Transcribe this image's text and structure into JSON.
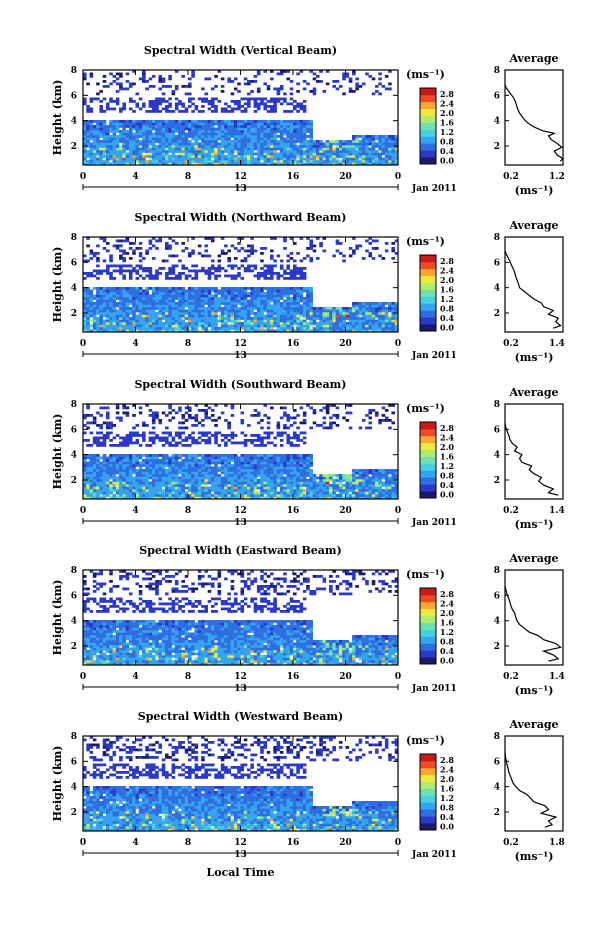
{
  "figure": {
    "bottom_xlabel": "Local Time",
    "colors": [
      "#ffffff",
      "#1b1b6b",
      "#2b39c7",
      "#2f6ee0",
      "#35a4f0",
      "#48d0e0",
      "#70e0b0",
      "#b0ec70",
      "#f0e840",
      "#f6a830",
      "#ee4a25",
      "#c81a1a"
    ]
  },
  "chart_data": [
    {
      "type": "heatmap",
      "title": "Spectral Width (Vertical Beam)",
      "ylabel": "Height (km)",
      "x_ticks": [
        "0",
        "4",
        "8",
        "12",
        "16",
        "20",
        "0"
      ],
      "x_sublabel": "13",
      "date_label": "Jan 2011",
      "y_ticks": [
        "2",
        "4",
        "6",
        "8"
      ],
      "xlim": [
        0,
        24
      ],
      "ylim": [
        0.5,
        8
      ],
      "colorbar": {
        "unit": "(ms⁻¹)",
        "ticks": [
          "0.0",
          "0.4",
          "0.8",
          "1.2",
          "1.6",
          "2.0",
          "2.4",
          "2.8"
        ]
      },
      "profile": {
        "title": "Average",
        "x_ticks": [
          "0.2",
          "1.2"
        ],
        "xlim": [
          0.2,
          1.2
        ],
        "y_ticks": [
          "2",
          "4",
          "6",
          "8"
        ],
        "xlabel": "(ms⁻¹)",
        "points": [
          [
            1.15,
            0.8
          ],
          [
            1.2,
            1.0
          ],
          [
            1.1,
            1.3
          ],
          [
            1.05,
            1.6
          ],
          [
            1.18,
            1.9
          ],
          [
            1.1,
            2.2
          ],
          [
            1.0,
            2.5
          ],
          [
            0.95,
            2.8
          ],
          [
            1.05,
            3.0
          ],
          [
            0.85,
            3.2
          ],
          [
            0.7,
            3.5
          ],
          [
            0.6,
            3.8
          ],
          [
            0.55,
            4.0
          ],
          [
            0.5,
            4.3
          ],
          [
            0.45,
            4.6
          ],
          [
            0.42,
            4.9
          ],
          [
            0.4,
            5.2
          ],
          [
            0.38,
            5.5
          ],
          [
            0.35,
            5.8
          ],
          [
            0.3,
            6.1
          ],
          [
            0.25,
            6.4
          ],
          [
            0.22,
            6.6
          ],
          [
            0.2,
            6.8
          ]
        ]
      }
    },
    {
      "type": "heatmap",
      "title": "Spectral Width (Northward Beam)",
      "ylabel": "Height (km)",
      "x_ticks": [
        "0",
        "4",
        "8",
        "12",
        "16",
        "20",
        "0"
      ],
      "x_sublabel": "13",
      "date_label": "Jan 2011",
      "y_ticks": [
        "2",
        "4",
        "6",
        "8"
      ],
      "xlim": [
        0,
        24
      ],
      "ylim": [
        0.5,
        8
      ],
      "colorbar": {
        "unit": "(ms⁻¹)",
        "ticks": [
          "0.0",
          "0.4",
          "0.8",
          "1.2",
          "1.6",
          "2.0",
          "2.4",
          "2.8"
        ]
      },
      "profile": {
        "title": "Average",
        "x_ticks": [
          "0.2",
          "1.4"
        ],
        "xlim": [
          0.2,
          1.4
        ],
        "y_ticks": [
          "2",
          "4",
          "6",
          "8"
        ],
        "xlabel": "(ms⁻¹)",
        "points": [
          [
            1.2,
            0.8
          ],
          [
            1.35,
            1.0
          ],
          [
            1.25,
            1.3
          ],
          [
            1.3,
            1.6
          ],
          [
            1.1,
            1.9
          ],
          [
            1.2,
            2.2
          ],
          [
            1.0,
            2.5
          ],
          [
            0.95,
            2.8
          ],
          [
            0.8,
            3.1
          ],
          [
            0.7,
            3.4
          ],
          [
            0.6,
            3.7
          ],
          [
            0.5,
            4.0
          ],
          [
            0.48,
            4.3
          ],
          [
            0.45,
            4.6
          ],
          [
            0.42,
            4.9
          ],
          [
            0.4,
            5.2
          ],
          [
            0.37,
            5.5
          ],
          [
            0.33,
            5.8
          ],
          [
            0.3,
            6.1
          ],
          [
            0.26,
            6.4
          ],
          [
            0.22,
            6.7
          ],
          [
            0.2,
            6.9
          ]
        ]
      }
    },
    {
      "type": "heatmap",
      "title": "Spectral Width (Southward Beam)",
      "ylabel": "Height (km)",
      "x_ticks": [
        "0",
        "4",
        "8",
        "12",
        "16",
        "20",
        "0"
      ],
      "x_sublabel": "13",
      "date_label": "Jan 2011",
      "y_ticks": [
        "2",
        "4",
        "6",
        "8"
      ],
      "xlim": [
        0,
        24
      ],
      "ylim": [
        0.5,
        8
      ],
      "colorbar": {
        "unit": "(ms⁻¹)",
        "ticks": [
          "0.0",
          "0.4",
          "0.8",
          "1.2",
          "1.6",
          "2.0",
          "2.4",
          "2.8"
        ]
      },
      "profile": {
        "title": "Average",
        "x_ticks": [
          "0.2",
          "1.4"
        ],
        "xlim": [
          0.2,
          1.4
        ],
        "y_ticks": [
          "2",
          "4",
          "6",
          "8"
        ],
        "xlabel": "(ms⁻¹)",
        "points": [
          [
            1.3,
            0.8
          ],
          [
            1.1,
            1.0
          ],
          [
            1.2,
            1.3
          ],
          [
            1.0,
            1.6
          ],
          [
            0.9,
            1.9
          ],
          [
            0.95,
            2.2
          ],
          [
            0.8,
            2.5
          ],
          [
            0.7,
            2.8
          ],
          [
            0.75,
            3.1
          ],
          [
            0.55,
            3.4
          ],
          [
            0.5,
            3.7
          ],
          [
            0.55,
            4.0
          ],
          [
            0.4,
            4.3
          ],
          [
            0.45,
            4.6
          ],
          [
            0.35,
            4.9
          ],
          [
            0.3,
            5.2
          ],
          [
            0.28,
            5.5
          ],
          [
            0.25,
            5.8
          ],
          [
            0.22,
            6.1
          ],
          [
            0.2,
            6.5
          ]
        ]
      }
    },
    {
      "type": "heatmap",
      "title": "Spectral Width (Eastward Beam)",
      "ylabel": "Height (km)",
      "x_ticks": [
        "0",
        "4",
        "8",
        "12",
        "16",
        "20",
        "0"
      ],
      "x_sublabel": "13",
      "date_label": "Jan 2011",
      "y_ticks": [
        "2",
        "4",
        "6",
        "8"
      ],
      "xlim": [
        0,
        24
      ],
      "ylim": [
        0.5,
        8
      ],
      "colorbar": {
        "unit": "(ms⁻¹)",
        "ticks": [
          "0.0",
          "0.4",
          "0.8",
          "1.2",
          "1.6",
          "2.0",
          "2.4",
          "2.8"
        ]
      },
      "profile": {
        "title": "Average",
        "x_ticks": [
          "0.2",
          "1.4"
        ],
        "xlim": [
          0.2,
          1.4
        ],
        "y_ticks": [
          "2",
          "4",
          "6",
          "8"
        ],
        "xlabel": "(ms⁻¹)",
        "points": [
          [
            1.1,
            0.8
          ],
          [
            1.3,
            1.0
          ],
          [
            1.2,
            1.3
          ],
          [
            1.0,
            1.6
          ],
          [
            1.35,
            1.9
          ],
          [
            1.25,
            2.2
          ],
          [
            1.0,
            2.5
          ],
          [
            0.9,
            2.8
          ],
          [
            0.7,
            3.1
          ],
          [
            0.6,
            3.4
          ],
          [
            0.5,
            3.7
          ],
          [
            0.45,
            4.0
          ],
          [
            0.42,
            4.3
          ],
          [
            0.4,
            4.6
          ],
          [
            0.35,
            4.9
          ],
          [
            0.32,
            5.2
          ],
          [
            0.3,
            5.5
          ],
          [
            0.27,
            5.8
          ],
          [
            0.24,
            6.1
          ],
          [
            0.22,
            6.4
          ],
          [
            0.2,
            6.7
          ]
        ]
      }
    },
    {
      "type": "heatmap",
      "title": "Spectral Width (Westward Beam)",
      "ylabel": "Height (km)",
      "x_ticks": [
        "0",
        "4",
        "8",
        "12",
        "16",
        "20",
        "0"
      ],
      "x_sublabel": "13",
      "date_label": "Jan 2011",
      "y_ticks": [
        "2",
        "4",
        "6",
        "8"
      ],
      "xlim": [
        0,
        24
      ],
      "ylim": [
        0.5,
        8
      ],
      "colorbar": {
        "unit": "(ms⁻¹)",
        "ticks": [
          "0.0",
          "0.4",
          "0.8",
          "1.2",
          "1.6",
          "2.0",
          "2.4",
          "2.8"
        ]
      },
      "profile": {
        "title": "Average",
        "x_ticks": [
          "0.2",
          "1.8"
        ],
        "xlim": [
          0.2,
          1.8
        ],
        "y_ticks": [
          "2",
          "4",
          "6",
          "8"
        ],
        "xlabel": "(ms⁻¹)",
        "points": [
          [
            1.3,
            0.8
          ],
          [
            1.5,
            1.0
          ],
          [
            1.4,
            1.3
          ],
          [
            1.6,
            1.6
          ],
          [
            1.2,
            1.9
          ],
          [
            1.4,
            2.2
          ],
          [
            1.3,
            2.5
          ],
          [
            1.0,
            2.8
          ],
          [
            0.9,
            3.1
          ],
          [
            0.8,
            3.4
          ],
          [
            0.6,
            3.7
          ],
          [
            0.5,
            4.0
          ],
          [
            0.42,
            4.3
          ],
          [
            0.38,
            4.6
          ],
          [
            0.34,
            4.9
          ],
          [
            0.3,
            5.2
          ],
          [
            0.28,
            5.5
          ],
          [
            0.25,
            5.8
          ],
          [
            0.23,
            6.1
          ],
          [
            0.21,
            6.4
          ],
          [
            0.2,
            6.8
          ]
        ]
      }
    }
  ]
}
